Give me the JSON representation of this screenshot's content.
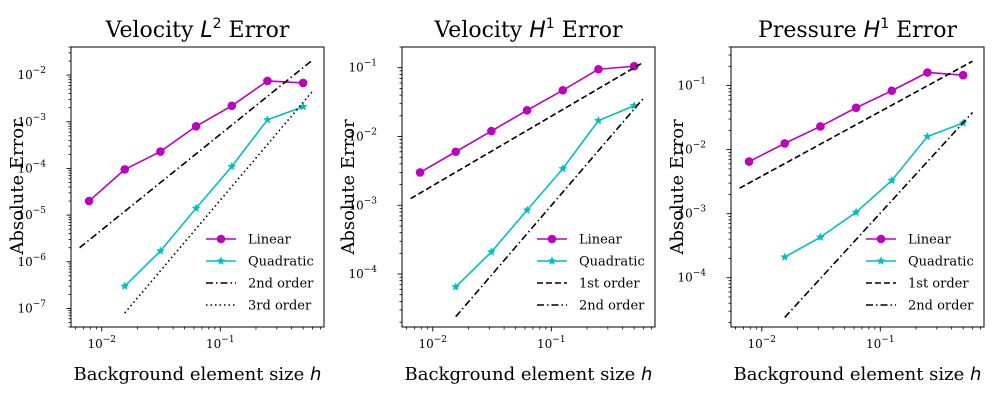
{
  "colors": {
    "linear": "#bf00bf",
    "quadratic": "#00bfbf",
    "ref": "#000000"
  },
  "chart_data": [
    {
      "type": "line",
      "title": "Velocity L² Error",
      "title_main": "Velocity ",
      "title_sym": "L",
      "title_sup": "2",
      "title_tail": " Error",
      "xlabel": "Background element size h",
      "xlabel_main": "Background element size ",
      "xlabel_sym": "h",
      "ylabel": "Absolute Error",
      "xscale": "log",
      "yscale": "log",
      "xlim": [
        0.0055,
        0.75
      ],
      "ylim": [
        4e-08,
        0.04
      ],
      "xticks": [
        {
          "base": "10",
          "exp": "−2",
          "value": 0.01
        },
        {
          "base": "10",
          "exp": "−1",
          "value": 0.1
        }
      ],
      "yticks": [
        {
          "base": "10",
          "exp": "−7",
          "value": 1e-07
        },
        {
          "base": "10",
          "exp": "−6",
          "value": 1e-06
        },
        {
          "base": "10",
          "exp": "−5",
          "value": 1e-05
        },
        {
          "base": "10",
          "exp": "−4",
          "value": 0.0001
        },
        {
          "base": "10",
          "exp": "−3",
          "value": 0.001
        },
        {
          "base": "10",
          "exp": "−2",
          "value": 0.01
        }
      ],
      "legend_position": "lower-right",
      "series": [
        {
          "name": "Linear",
          "style": "linear",
          "x": [
            0.0078125,
            0.015625,
            0.03125,
            0.0625,
            0.125,
            0.25,
            0.5
          ],
          "y": [
            2e-05,
            9.5e-05,
            0.00023,
            0.0008,
            0.0022,
            0.0075,
            0.0068
          ]
        },
        {
          "name": "Quadratic",
          "style": "quadratic",
          "x": [
            0.015625,
            0.03125,
            0.0625,
            0.125,
            0.25,
            0.5
          ],
          "y": [
            3e-07,
            1.7e-06,
            1.4e-05,
            0.00011,
            0.0011,
            0.0021
          ]
        },
        {
          "name": "2nd order",
          "style": "dashdot",
          "x": [
            0.0065,
            0.6
          ],
          "y": [
            2e-06,
            0.021
          ]
        },
        {
          "name": "3rd order",
          "style": "dotted",
          "x": [
            0.015625,
            0.6
          ],
          "y": [
            8e-08,
            0.0045
          ]
        }
      ]
    },
    {
      "type": "line",
      "title": "Velocity H¹ Error",
      "title_main": "Velocity ",
      "title_sym": "H",
      "title_sup": "1",
      "title_tail": " Error",
      "xlabel": "Background element size h",
      "xlabel_main": "Background element size ",
      "xlabel_sym": "h",
      "ylabel": "Absolute Error",
      "xscale": "log",
      "yscale": "log",
      "xlim": [
        0.0055,
        0.75
      ],
      "ylim": [
        1.7e-05,
        0.2
      ],
      "xticks": [
        {
          "base": "10",
          "exp": "−2",
          "value": 0.01
        },
        {
          "base": "10",
          "exp": "−1",
          "value": 0.1
        }
      ],
      "yticks": [
        {
          "base": "10",
          "exp": "−4",
          "value": 0.0001
        },
        {
          "base": "10",
          "exp": "−3",
          "value": 0.001
        },
        {
          "base": "10",
          "exp": "−2",
          "value": 0.01
        },
        {
          "base": "10",
          "exp": "−1",
          "value": 0.1
        }
      ],
      "legend_position": "lower-right",
      "series": [
        {
          "name": "Linear",
          "style": "linear",
          "x": [
            0.0078125,
            0.015625,
            0.03125,
            0.0625,
            0.125,
            0.25,
            0.5
          ],
          "y": [
            0.003,
            0.006,
            0.012,
            0.024,
            0.047,
            0.095,
            0.105
          ]
        },
        {
          "name": "Quadratic",
          "style": "quadratic",
          "x": [
            0.015625,
            0.03125,
            0.0625,
            0.125,
            0.25,
            0.5
          ],
          "y": [
            6.5e-05,
            0.00021,
            0.00085,
            0.0034,
            0.017,
            0.028
          ]
        },
        {
          "name": "1st order",
          "style": "dashed",
          "x": [
            0.0065,
            0.6
          ],
          "y": [
            0.00125,
            0.12
          ]
        },
        {
          "name": "2nd order",
          "style": "dashdot",
          "x": [
            0.015625,
            0.6
          ],
          "y": [
            2.4e-05,
            0.036
          ]
        }
      ]
    },
    {
      "type": "line",
      "title": "Pressure H¹ Error",
      "title_main": "Pressure ",
      "title_sym": "H",
      "title_sup": "1",
      "title_tail": " Error",
      "xlabel": "Background element size h",
      "xlabel_main": "Background element size ",
      "xlabel_sym": "h",
      "ylabel": "Absolute Error",
      "xscale": "log",
      "yscale": "log",
      "xlim": [
        0.0055,
        0.75
      ],
      "ylim": [
        1.7e-05,
        0.4
      ],
      "xticks": [
        {
          "base": "10",
          "exp": "−2",
          "value": 0.01
        },
        {
          "base": "10",
          "exp": "−1",
          "value": 0.1
        }
      ],
      "yticks": [
        {
          "base": "10",
          "exp": "−4",
          "value": 0.0001
        },
        {
          "base": "10",
          "exp": "−3",
          "value": 0.001
        },
        {
          "base": "10",
          "exp": "−2",
          "value": 0.01
        },
        {
          "base": "10",
          "exp": "−1",
          "value": 0.1
        }
      ],
      "legend_position": "lower-right",
      "series": [
        {
          "name": "Linear",
          "style": "linear",
          "x": [
            0.0078125,
            0.015625,
            0.03125,
            0.0625,
            0.125,
            0.25,
            0.5
          ],
          "y": [
            0.0065,
            0.0125,
            0.023,
            0.045,
            0.083,
            0.16,
            0.145
          ]
        },
        {
          "name": "Quadratic",
          "style": "quadratic",
          "x": [
            0.015625,
            0.03125,
            0.0625,
            0.125,
            0.25,
            0.5
          ],
          "y": [
            0.00021,
            0.00043,
            0.00105,
            0.0033,
            0.016,
            0.026
          ]
        },
        {
          "name": "1st order",
          "style": "dashed",
          "x": [
            0.0065,
            0.6
          ],
          "y": [
            0.0025,
            0.24
          ]
        },
        {
          "name": "2nd order",
          "style": "dashdot",
          "x": [
            0.015625,
            0.6
          ],
          "y": [
            2.4e-05,
            0.038
          ]
        }
      ]
    }
  ]
}
